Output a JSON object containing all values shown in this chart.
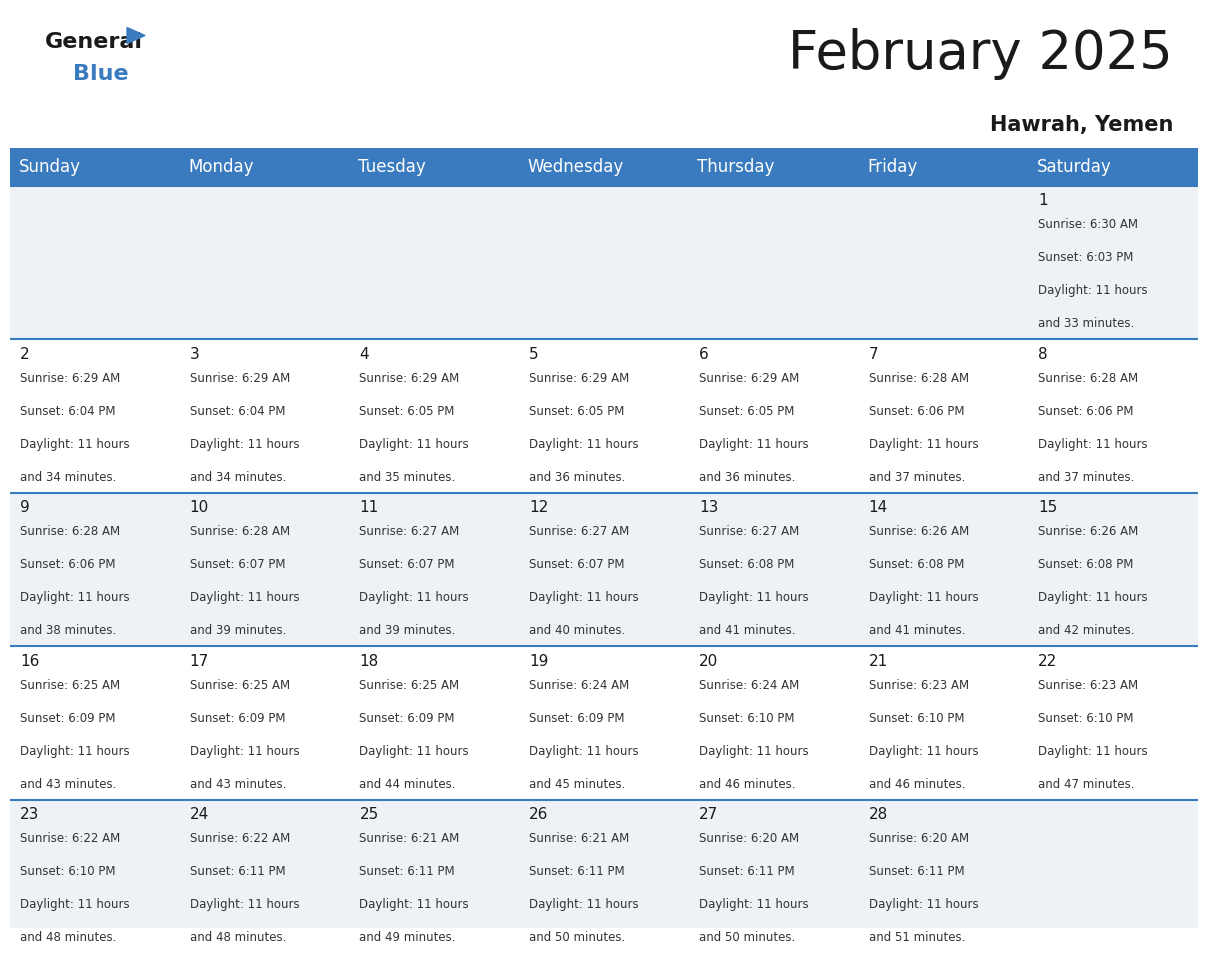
{
  "title": "February 2025",
  "subtitle": "Hawrah, Yemen",
  "header_color": "#3a7bbf",
  "header_text_color": "#ffffff",
  "days_of_week": [
    "Sunday",
    "Monday",
    "Tuesday",
    "Wednesday",
    "Thursday",
    "Friday",
    "Saturday"
  ],
  "cell_bg_light": "#edf2f7",
  "cell_bg_white": "#ffffff",
  "title_fontsize": 38,
  "subtitle_fontsize": 15,
  "header_fontsize": 12,
  "day_num_fontsize": 11,
  "info_fontsize": 8.5,
  "calendar": [
    [
      null,
      null,
      null,
      null,
      null,
      null,
      {
        "day": 1,
        "sunrise": "6:30 AM",
        "sunset": "6:03 PM",
        "daylight": "11 hours and 33 minutes."
      }
    ],
    [
      {
        "day": 2,
        "sunrise": "6:29 AM",
        "sunset": "6:04 PM",
        "daylight": "11 hours and 34 minutes."
      },
      {
        "day": 3,
        "sunrise": "6:29 AM",
        "sunset": "6:04 PM",
        "daylight": "11 hours and 34 minutes."
      },
      {
        "day": 4,
        "sunrise": "6:29 AM",
        "sunset": "6:05 PM",
        "daylight": "11 hours and 35 minutes."
      },
      {
        "day": 5,
        "sunrise": "6:29 AM",
        "sunset": "6:05 PM",
        "daylight": "11 hours and 36 minutes."
      },
      {
        "day": 6,
        "sunrise": "6:29 AM",
        "sunset": "6:05 PM",
        "daylight": "11 hours and 36 minutes."
      },
      {
        "day": 7,
        "sunrise": "6:28 AM",
        "sunset": "6:06 PM",
        "daylight": "11 hours and 37 minutes."
      },
      {
        "day": 8,
        "sunrise": "6:28 AM",
        "sunset": "6:06 PM",
        "daylight": "11 hours and 37 minutes."
      }
    ],
    [
      {
        "day": 9,
        "sunrise": "6:28 AM",
        "sunset": "6:06 PM",
        "daylight": "11 hours and 38 minutes."
      },
      {
        "day": 10,
        "sunrise": "6:28 AM",
        "sunset": "6:07 PM",
        "daylight": "11 hours and 39 minutes."
      },
      {
        "day": 11,
        "sunrise": "6:27 AM",
        "sunset": "6:07 PM",
        "daylight": "11 hours and 39 minutes."
      },
      {
        "day": 12,
        "sunrise": "6:27 AM",
        "sunset": "6:07 PM",
        "daylight": "11 hours and 40 minutes."
      },
      {
        "day": 13,
        "sunrise": "6:27 AM",
        "sunset": "6:08 PM",
        "daylight": "11 hours and 41 minutes."
      },
      {
        "day": 14,
        "sunrise": "6:26 AM",
        "sunset": "6:08 PM",
        "daylight": "11 hours and 41 minutes."
      },
      {
        "day": 15,
        "sunrise": "6:26 AM",
        "sunset": "6:08 PM",
        "daylight": "11 hours and 42 minutes."
      }
    ],
    [
      {
        "day": 16,
        "sunrise": "6:25 AM",
        "sunset": "6:09 PM",
        "daylight": "11 hours and 43 minutes."
      },
      {
        "day": 17,
        "sunrise": "6:25 AM",
        "sunset": "6:09 PM",
        "daylight": "11 hours and 43 minutes."
      },
      {
        "day": 18,
        "sunrise": "6:25 AM",
        "sunset": "6:09 PM",
        "daylight": "11 hours and 44 minutes."
      },
      {
        "day": 19,
        "sunrise": "6:24 AM",
        "sunset": "6:09 PM",
        "daylight": "11 hours and 45 minutes."
      },
      {
        "day": 20,
        "sunrise": "6:24 AM",
        "sunset": "6:10 PM",
        "daylight": "11 hours and 46 minutes."
      },
      {
        "day": 21,
        "sunrise": "6:23 AM",
        "sunset": "6:10 PM",
        "daylight": "11 hours and 46 minutes."
      },
      {
        "day": 22,
        "sunrise": "6:23 AM",
        "sunset": "6:10 PM",
        "daylight": "11 hours and 47 minutes."
      }
    ],
    [
      {
        "day": 23,
        "sunrise": "6:22 AM",
        "sunset": "6:10 PM",
        "daylight": "11 hours and 48 minutes."
      },
      {
        "day": 24,
        "sunrise": "6:22 AM",
        "sunset": "6:11 PM",
        "daylight": "11 hours and 48 minutes."
      },
      {
        "day": 25,
        "sunrise": "6:21 AM",
        "sunset": "6:11 PM",
        "daylight": "11 hours and 49 minutes."
      },
      {
        "day": 26,
        "sunrise": "6:21 AM",
        "sunset": "6:11 PM",
        "daylight": "11 hours and 50 minutes."
      },
      {
        "day": 27,
        "sunrise": "6:20 AM",
        "sunset": "6:11 PM",
        "daylight": "11 hours and 50 minutes."
      },
      {
        "day": 28,
        "sunrise": "6:20 AM",
        "sunset": "6:11 PM",
        "daylight": "11 hours and 51 minutes."
      },
      null
    ]
  ]
}
